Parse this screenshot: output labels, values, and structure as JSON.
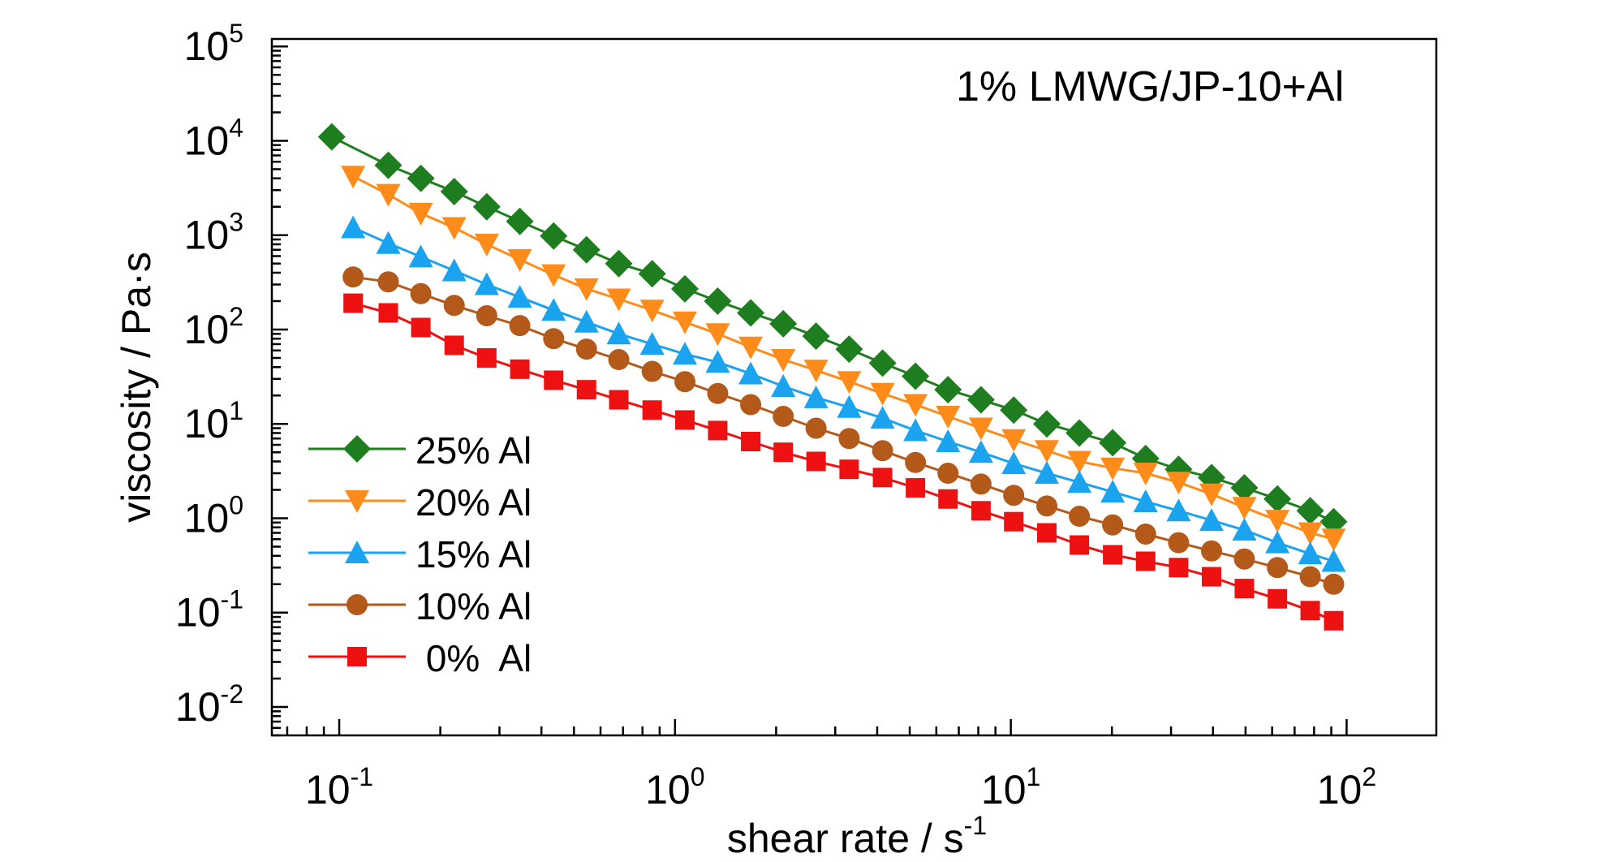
{
  "chart_data": {
    "type": "scatter",
    "title": "1% LMWG/JP-10+Al",
    "xlabel": {
      "main": "shear rate / s",
      "sup": "-1"
    },
    "ylabel": "viscosity / Pa·s",
    "x_scale": "log",
    "y_scale": "log",
    "xlim": [
      0.063,
      185
    ],
    "ylim": [
      0.005,
      120000
    ],
    "x_ticks": [
      {
        "value": 0.1,
        "base": "10",
        "exp": "-1"
      },
      {
        "value": 1,
        "base": "10",
        "exp": "0"
      },
      {
        "value": 10,
        "base": "10",
        "exp": "1"
      },
      {
        "value": 100,
        "base": "10",
        "exp": "2"
      }
    ],
    "y_ticks": [
      {
        "value": 0.01,
        "base": "10",
        "exp": "-2"
      },
      {
        "value": 0.1,
        "base": "10",
        "exp": "-1"
      },
      {
        "value": 1,
        "base": "10",
        "exp": "0"
      },
      {
        "value": 10,
        "base": "10",
        "exp": "1"
      },
      {
        "value": 100,
        "base": "10",
        "exp": "2"
      },
      {
        "value": 1000,
        "base": "10",
        "exp": "3"
      },
      {
        "value": 10000,
        "base": "10",
        "exp": "4"
      },
      {
        "value": 100000,
        "base": "10",
        "exp": "5"
      }
    ],
    "grid": false,
    "legend_position": "lower-left",
    "series": [
      {
        "name": "25% Al",
        "color": "#1e7d1e",
        "marker": "diamond",
        "x": [
          0.095,
          0.14,
          0.175,
          0.22,
          0.275,
          0.345,
          0.435,
          0.545,
          0.68,
          0.855,
          1.07,
          1.34,
          1.68,
          2.1,
          2.63,
          3.3,
          4.15,
          5.2,
          6.5,
          8.15,
          10.2,
          12.8,
          16,
          20.1,
          25.2,
          31.6,
          39.6,
          49.6,
          62.2,
          77.9,
          91.5
        ],
        "y": [
          11000,
          5500,
          4000,
          2900,
          2000,
          1400,
          980,
          700,
          500,
          390,
          270,
          200,
          150,
          115,
          85,
          62,
          44,
          32,
          23,
          18,
          14,
          10,
          8,
          6.3,
          4.3,
          3.3,
          2.7,
          2.1,
          1.6,
          1.2,
          0.92
        ]
      },
      {
        "name": "20% Al",
        "color": "#ff8c1a",
        "marker": "triangle-down",
        "x": [
          0.11,
          0.14,
          0.175,
          0.22,
          0.275,
          0.345,
          0.435,
          0.545,
          0.68,
          0.855,
          1.07,
          1.34,
          1.68,
          2.1,
          2.63,
          3.3,
          4.15,
          5.2,
          6.5,
          8.15,
          10.2,
          12.8,
          16,
          20.1,
          25.2,
          31.6,
          39.6,
          49.6,
          62.2,
          77.9,
          91.5
        ],
        "y": [
          4200,
          2700,
          1700,
          1200,
          800,
          550,
          380,
          270,
          210,
          160,
          120,
          90,
          65,
          48,
          37,
          28,
          21,
          16,
          12,
          9,
          6.8,
          5.2,
          4,
          3.4,
          3,
          2.4,
          1.8,
          1.3,
          0.95,
          0.7,
          0.6
        ]
      },
      {
        "name": "15% Al",
        "color": "#1aa3ee",
        "marker": "triangle-up",
        "x": [
          0.11,
          0.14,
          0.175,
          0.22,
          0.275,
          0.345,
          0.435,
          0.545,
          0.68,
          0.855,
          1.07,
          1.34,
          1.68,
          2.1,
          2.63,
          3.3,
          4.15,
          5.2,
          6.5,
          8.15,
          10.2,
          12.8,
          16,
          20.1,
          25.2,
          31.6,
          39.6,
          49.6,
          62.2,
          77.9,
          91.5
        ],
        "y": [
          1200,
          820,
          590,
          420,
          300,
          220,
          160,
          120,
          90,
          70,
          55,
          45,
          34,
          25,
          19,
          15,
          11.5,
          8.5,
          6.5,
          5,
          3.8,
          3,
          2.4,
          1.9,
          1.5,
          1.2,
          0.95,
          0.75,
          0.55,
          0.42,
          0.35
        ]
      },
      {
        "name": "10% Al",
        "color": "#b35a1a",
        "marker": "circle",
        "x": [
          0.11,
          0.14,
          0.175,
          0.22,
          0.275,
          0.345,
          0.435,
          0.545,
          0.68,
          0.855,
          1.07,
          1.34,
          1.68,
          2.1,
          2.63,
          3.3,
          4.15,
          5.2,
          6.5,
          8.15,
          10.2,
          12.8,
          16,
          20.1,
          25.2,
          31.6,
          39.6,
          49.6,
          62.2,
          77.9,
          91.5
        ],
        "y": [
          360,
          320,
          240,
          180,
          140,
          110,
          80,
          62,
          48,
          36,
          28,
          21,
          16,
          12,
          9,
          7,
          5.2,
          3.9,
          3,
          2.3,
          1.75,
          1.35,
          1.05,
          0.85,
          0.68,
          0.55,
          0.45,
          0.37,
          0.3,
          0.24,
          0.2
        ]
      },
      {
        "name": " 0%  Al",
        "color": "#ee1111",
        "marker": "square",
        "x": [
          0.11,
          0.14,
          0.175,
          0.22,
          0.275,
          0.345,
          0.435,
          0.545,
          0.68,
          0.855,
          1.07,
          1.34,
          1.68,
          2.1,
          2.63,
          3.3,
          4.15,
          5.2,
          6.5,
          8.15,
          10.2,
          12.8,
          16,
          20.1,
          25.2,
          31.6,
          39.6,
          49.6,
          62.2,
          77.9,
          91.5
        ],
        "y": [
          190,
          150,
          105,
          68,
          50,
          38,
          29,
          23,
          18,
          14,
          11,
          8.5,
          6.5,
          5,
          4,
          3.3,
          2.7,
          2.1,
          1.6,
          1.2,
          0.92,
          0.7,
          0.52,
          0.41,
          0.35,
          0.3,
          0.24,
          0.18,
          0.14,
          0.105,
          0.082
        ]
      }
    ]
  }
}
